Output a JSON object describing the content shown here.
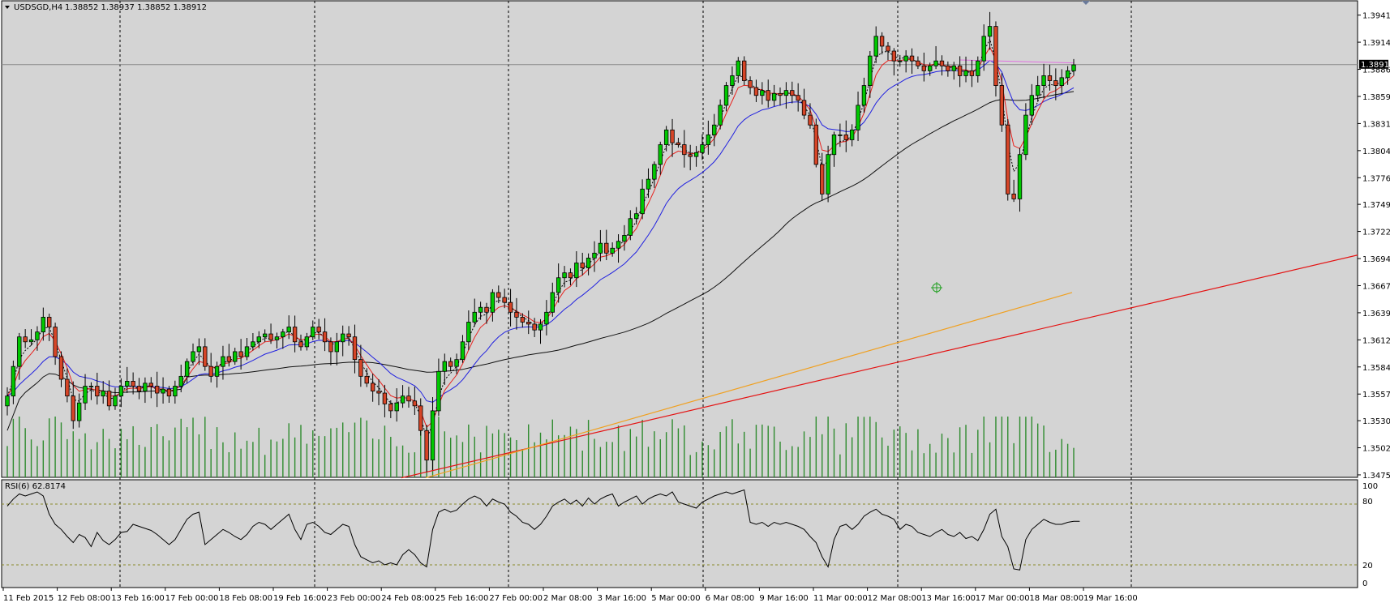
{
  "header": {
    "symbol": "USDSGD,H4",
    "ohlc": "1.38852 1.38937 1.38852 1.38912"
  },
  "rsi": {
    "label": "RSI(6) 62.8174",
    "scale_labels": [
      "100",
      "80",
      "20",
      "0"
    ]
  },
  "price_badge": "1.38912",
  "colors": {
    "background": "#d4d4d4",
    "bull_body": "#00c800",
    "bear_body": "#d64527",
    "volume": "#2e8b2e",
    "ma_fast": "#e8201c",
    "ma_mid": "#2020e0",
    "ma_slow": "#101010",
    "trend_red": "#e41414",
    "trend_orange": "#f0a020",
    "rsi_line": "#000000",
    "level_line": "#8a8a2a",
    "magenta_line": "#e070e0"
  },
  "chart_data": [
    {
      "type": "candlestick",
      "title": "USDSGD,H4",
      "ylim": [
        1.34725,
        1.3956
      ],
      "y_ticks": [
        "1.39415",
        "1.39140",
        "1.38865",
        "1.38590",
        "1.38315",
        "1.38040",
        "1.37765",
        "1.37495",
        "1.37220",
        "1.36945",
        "1.36670",
        "1.36395",
        "1.36120",
        "1.35845",
        "1.35570",
        "1.35300",
        "1.35025",
        "1.34750"
      ],
      "x_tick_labels": [
        "11 Feb 2015",
        "12 Feb 08:00",
        "13 Feb 16:00",
        "17 Feb 00:00",
        "18 Feb 08:00",
        "19 Feb 16:00",
        "23 Feb 00:00",
        "24 Feb 08:00",
        "25 Feb 16:00",
        "27 Feb 00:00",
        "2 Mar 08:00",
        "3 Mar 16:00",
        "5 Mar 00:00",
        "6 Mar 08:00",
        "9 Mar 16:00",
        "11 Mar 00:00",
        "12 Mar 08:00",
        "13 Mar 16:00",
        "17 Mar 00:00",
        "18 Mar 08:00",
        "19 Mar 16:00"
      ],
      "current_price": 1.38912,
      "close": [
        1.3555,
        1.3585,
        1.3615,
        1.361,
        1.3612,
        1.362,
        1.3635,
        1.3625,
        1.3595,
        1.3572,
        1.3555,
        1.353,
        1.3548,
        1.3565,
        1.3565,
        1.3555,
        1.356,
        1.3545,
        1.3555,
        1.3565,
        1.357,
        1.3565,
        1.356,
        1.3568,
        1.3565,
        1.3558,
        1.3562,
        1.3555,
        1.3565,
        1.3575,
        1.359,
        1.36,
        1.3605,
        1.3585,
        1.3575,
        1.3585,
        1.3595,
        1.359,
        1.36,
        1.3595,
        1.3605,
        1.361,
        1.3615,
        1.3618,
        1.3612,
        1.3615,
        1.362,
        1.3625,
        1.361,
        1.3605,
        1.3615,
        1.3625,
        1.362,
        1.361,
        1.36,
        1.361,
        1.3618,
        1.3615,
        1.3592,
        1.3575,
        1.3568,
        1.356,
        1.3558,
        1.3547,
        1.354,
        1.3548,
        1.3555,
        1.355,
        1.3545,
        1.352,
        1.349,
        1.354,
        1.358,
        1.359,
        1.3585,
        1.3592,
        1.361,
        1.363,
        1.364,
        1.3645,
        1.364,
        1.366,
        1.3655,
        1.365,
        1.364,
        1.3635,
        1.363,
        1.3628,
        1.3622,
        1.3628,
        1.364,
        1.366,
        1.3675,
        1.368,
        1.3675,
        1.369,
        1.3685,
        1.3695,
        1.37,
        1.371,
        1.37,
        1.3705,
        1.3712,
        1.3718,
        1.3735,
        1.374,
        1.3765,
        1.3775,
        1.379,
        1.381,
        1.3825,
        1.3812,
        1.381,
        1.38,
        1.3798,
        1.3802,
        1.381,
        1.382,
        1.383,
        1.385,
        1.387,
        1.388,
        1.3895,
        1.3875,
        1.3868,
        1.386,
        1.3865,
        1.3855,
        1.3862,
        1.386,
        1.3865,
        1.386,
        1.3855,
        1.384,
        1.383,
        1.379,
        1.376,
        1.38,
        1.382,
        1.382,
        1.3815,
        1.3825,
        1.385,
        1.387,
        1.39,
        1.392,
        1.391,
        1.3905,
        1.3895,
        1.3895,
        1.39,
        1.3895,
        1.389,
        1.3885,
        1.389,
        1.3895,
        1.389,
        1.3885,
        1.389,
        1.388,
        1.3885,
        1.388,
        1.3895,
        1.392,
        1.393,
        1.387,
        1.383,
        1.376,
        1.3755,
        1.38,
        1.384,
        1.386,
        1.387,
        1.388,
        1.3875,
        1.387,
        1.3878,
        1.3885,
        1.3891
      ],
      "series": [
        {
          "name": "RSI(6)",
          "values": [
            78,
            85,
            90,
            88,
            90,
            92,
            88,
            70,
            60,
            55,
            48,
            42,
            50,
            47,
            38,
            52,
            44,
            40,
            45,
            52,
            53,
            60,
            58,
            56,
            54,
            50,
            45,
            40,
            45,
            55,
            65,
            70,
            72,
            40,
            45,
            50,
            55,
            52,
            48,
            45,
            50,
            58,
            62,
            60,
            55,
            60,
            65,
            70,
            55,
            45,
            60,
            62,
            58,
            52,
            50,
            55,
            60,
            58,
            40,
            28,
            25,
            22,
            24,
            20,
            22,
            20,
            30,
            35,
            30,
            22,
            18,
            55,
            72,
            75,
            72,
            74,
            80,
            85,
            88,
            85,
            78,
            85,
            82,
            80,
            72,
            68,
            62,
            60,
            55,
            60,
            68,
            78,
            82,
            85,
            80,
            84,
            78,
            86,
            80,
            85,
            88,
            90,
            78,
            82,
            85,
            88,
            80,
            85,
            88,
            90,
            88,
            92,
            82,
            80,
            78,
            76,
            82,
            85,
            88,
            90,
            92,
            90,
            92,
            94,
            62,
            60,
            62,
            58,
            62,
            60,
            62,
            60,
            58,
            55,
            48,
            42,
            28,
            18,
            45,
            58,
            60,
            55,
            60,
            68,
            72,
            75,
            70,
            68,
            65,
            55,
            60,
            58,
            52,
            50,
            48,
            52,
            55,
            50,
            48,
            52,
            46,
            48,
            44,
            55,
            70,
            75,
            48,
            38,
            16,
            15,
            45,
            55,
            60,
            65,
            62,
            60,
            60,
            62,
            63,
            63
          ]
        },
        {
          "name": "trendline_red",
          "values": [
            1.3472,
            1.3698
          ]
        },
        {
          "name": "trendline_orange",
          "values": [
            1.3472,
            1.366
          ]
        }
      ]
    }
  ]
}
